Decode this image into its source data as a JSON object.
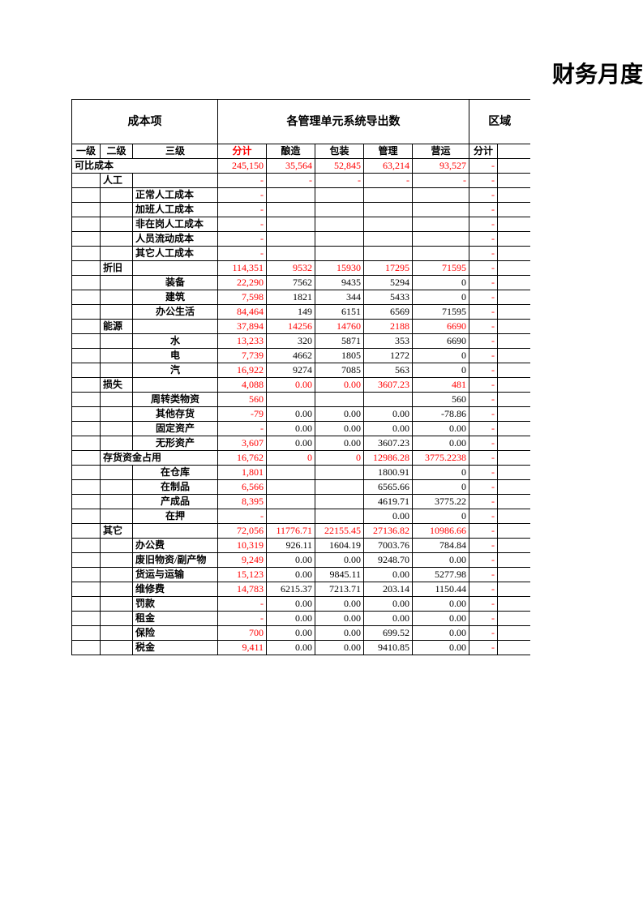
{
  "title": "财务月度",
  "header": {
    "cost_item": "成本项",
    "export": "各管理单元系统导出数",
    "region": "区域",
    "l1": "一级",
    "l2": "二级",
    "l3": "三级",
    "subtotal": "分计",
    "brewing": "酿造",
    "packaging": "包装",
    "mgmt": "管理",
    "operation": "营运",
    "subtotal2": "分计"
  },
  "rows": [
    {
      "l1": "可比成本",
      "l1span": 3,
      "l2": "",
      "l3": "",
      "ft": "245,150",
      "c1": "35,564",
      "c2": "52,845",
      "c3": "63,214",
      "c4": "93,527",
      "ft2": "-",
      "ftRed": true,
      "c1Red": true,
      "c2Red": true,
      "c3Red": true,
      "c4Red": true,
      "ft2Red": true,
      "boldL1": true
    },
    {
      "l1": "",
      "l2": "人工",
      "l3": "",
      "ft": "-",
      "c1": "-",
      "c2": "-",
      "c3": "-",
      "c4": "-",
      "ft2": "-",
      "ftRed": true,
      "c1Red": true,
      "c2Red": true,
      "c3Red": true,
      "c4Red": true,
      "ft2Red": true,
      "boldL2": true
    },
    {
      "l1": "",
      "l2": "",
      "l3": "正常人工成本",
      "ft": "-",
      "c1": "",
      "c2": "",
      "c3": "",
      "c4": "",
      "ft2": "-",
      "ftRed": true,
      "ft2Red": true,
      "boldL3": true
    },
    {
      "l1": "",
      "l2": "",
      "l3": "加班人工成本",
      "ft": "-",
      "c1": "",
      "c2": "",
      "c3": "",
      "c4": "",
      "ft2": "-",
      "ftRed": true,
      "ft2Red": true,
      "boldL3": true
    },
    {
      "l1": "",
      "l2": "",
      "l3": "非在岗人工成本",
      "ft": "-",
      "c1": "",
      "c2": "",
      "c3": "",
      "c4": "",
      "ft2": "-",
      "ftRed": true,
      "ft2Red": true,
      "boldL3": true
    },
    {
      "l1": "",
      "l2": "",
      "l3": "人员流动成本",
      "ft": "-",
      "c1": "",
      "c2": "",
      "c3": "",
      "c4": "",
      "ft2": "-",
      "ftRed": true,
      "ft2Red": true,
      "boldL3": true
    },
    {
      "l1": "",
      "l2": "",
      "l3": "其它人工成本",
      "ft": "-",
      "c1": "",
      "c2": "",
      "c3": "",
      "c4": "",
      "ft2": "-",
      "ftRed": true,
      "ft2Red": true,
      "boldL3": true
    },
    {
      "l1": "",
      "l2": "折旧",
      "l3": "",
      "ft": "114,351",
      "c1": "9532",
      "c2": "15930",
      "c3": "17295",
      "c4": "71595",
      "ft2": "-",
      "ftRed": true,
      "c1Red": true,
      "c2Red": true,
      "c3Red": true,
      "c4Red": true,
      "ft2Red": true,
      "boldL2": true
    },
    {
      "l1": "",
      "l2": "",
      "l3": "装备",
      "ft": "22,290",
      "c1": "7562",
      "c2": "9435",
      "c3": "5294",
      "c4": "0",
      "ft2": "-",
      "ftRed": true,
      "ft2Red": true,
      "l3c": true,
      "boldL3": true
    },
    {
      "l1": "",
      "l2": "",
      "l3": "建筑",
      "ft": "7,598",
      "c1": "1821",
      "c2": "344",
      "c3": "5433",
      "c4": "0",
      "ft2": "-",
      "ftRed": true,
      "ft2Red": true,
      "l3c": true,
      "boldL3": true
    },
    {
      "l1": "",
      "l2": "",
      "l3": "办公生活",
      "ft": "84,464",
      "c1": "149",
      "c2": "6151",
      "c3": "6569",
      "c4": "71595",
      "ft2": "-",
      "ftRed": true,
      "ft2Red": true,
      "l3c": true,
      "boldL3": true
    },
    {
      "l1": "",
      "l2": "能源",
      "l3": "",
      "ft": "37,894",
      "c1": "14256",
      "c2": "14760",
      "c3": "2188",
      "c4": "6690",
      "ft2": "-",
      "ftRed": true,
      "c1Red": true,
      "c2Red": true,
      "c3Red": true,
      "c4Red": true,
      "ft2Red": true,
      "boldL2": true
    },
    {
      "l1": "",
      "l2": "",
      "l3": "水",
      "ft": "13,233",
      "c1": "320",
      "c2": "5871",
      "c3": "353",
      "c4": "6690",
      "ft2": "-",
      "ftRed": true,
      "ft2Red": true,
      "l3c": true,
      "boldL3": true
    },
    {
      "l1": "",
      "l2": "",
      "l3": "电",
      "ft": "7,739",
      "c1": "4662",
      "c2": "1805",
      "c3": "1272",
      "c4": "0",
      "ft2": "-",
      "ftRed": true,
      "ft2Red": true,
      "l3c": true,
      "boldL3": true
    },
    {
      "l1": "",
      "l2": "",
      "l3": "汽",
      "ft": "16,922",
      "c1": "9274",
      "c2": "7085",
      "c3": "563",
      "c4": "0",
      "ft2": "-",
      "ftRed": true,
      "ft2Red": true,
      "l3c": true,
      "boldL3": true
    },
    {
      "l1": "",
      "l2": "损失",
      "l3": "",
      "ft": "4,088",
      "c1": "0.00",
      "c2": "0.00",
      "c3": "3607.23",
      "c4": "481",
      "ft2": "-",
      "ftRed": true,
      "c1Red": true,
      "c2Red": true,
      "c3Red": true,
      "c4Red": true,
      "ft2Red": true,
      "boldL2": true
    },
    {
      "l1": "",
      "l2": "",
      "l3": "周转类物资",
      "ft": "560",
      "c1": "",
      "c2": "",
      "c3": "",
      "c4": "560",
      "ft2": "-",
      "ftRed": true,
      "ft2Red": true,
      "l3c": true,
      "boldL3": true
    },
    {
      "l1": "",
      "l2": "",
      "l3": "其他存货",
      "ft": "-79",
      "c1": "0.00",
      "c2": "0.00",
      "c3": "0.00",
      "c4": "-78.86",
      "ft2": "-",
      "ftRed": true,
      "ft2Red": true,
      "l3c": true,
      "boldL3": true
    },
    {
      "l1": "",
      "l2": "",
      "l3": "固定资产",
      "ft": "-",
      "c1": "0.00",
      "c2": "0.00",
      "c3": "0.00",
      "c4": "0.00",
      "ft2": "-",
      "ftRed": true,
      "ft2Red": true,
      "l3c": true,
      "boldL3": true
    },
    {
      "l1": "",
      "l2": "",
      "l3": "无形资产",
      "ft": "3,607",
      "c1": "0.00",
      "c2": "0.00",
      "c3": "3607.23",
      "c4": "0.00",
      "ft2": "-",
      "ftRed": true,
      "ft2Red": true,
      "l3c": true,
      "boldL3": true
    },
    {
      "l1": "",
      "l2": "存货资金占用",
      "l2span": 2,
      "l3": "",
      "ft": "16,762",
      "c1": "0",
      "c2": "0",
      "c3": "12986.28",
      "c4": "3775.2238",
      "ft2": "-",
      "ftRed": true,
      "c1Red": true,
      "c2Red": true,
      "c3Red": true,
      "c4Red": true,
      "ft2Red": true,
      "boldL2": true
    },
    {
      "l1": "",
      "l2": "",
      "l3": "在仓库",
      "ft": "1,801",
      "c1": "",
      "c2": "",
      "c3": "1800.91",
      "c4": "0",
      "ft2": "-",
      "ftRed": true,
      "ft2Red": true,
      "l3c": true,
      "boldL3": true
    },
    {
      "l1": "",
      "l2": "",
      "l3": "在制品",
      "ft": "6,566",
      "c1": "",
      "c2": "",
      "c3": "6565.66",
      "c4": "0",
      "ft2": "-",
      "ftRed": true,
      "ft2Red": true,
      "l3c": true,
      "boldL3": true
    },
    {
      "l1": "",
      "l2": "",
      "l3": "产成品",
      "ft": "8,395",
      "c1": "",
      "c2": "",
      "c3": "4619.71",
      "c4": "3775.22",
      "ft2": "-",
      "ftRed": true,
      "ft2Red": true,
      "l3c": true,
      "boldL3": true
    },
    {
      "l1": "",
      "l2": "",
      "l3": "在押",
      "ft": "-",
      "c1": "",
      "c2": "",
      "c3": "0.00",
      "c4": "0",
      "ft2": "-",
      "ftRed": true,
      "ft2Red": true,
      "l3c": true,
      "boldL3": true
    },
    {
      "l1": "",
      "l2": "其它",
      "l3": "",
      "ft": "72,056",
      "c1": "11776.71",
      "c2": "22155.45",
      "c3": "27136.82",
      "c4": "10986.66",
      "ft2": "-",
      "ftRed": true,
      "c1Red": true,
      "c2Red": true,
      "c3Red": true,
      "c4Red": true,
      "ft2Red": true,
      "boldL2": true
    },
    {
      "l1": "",
      "l2": "",
      "l3": "办公费",
      "ft": "10,319",
      "c1": "926.11",
      "c2": "1604.19",
      "c3": "7003.76",
      "c4": "784.84",
      "ft2": "-",
      "ftRed": true,
      "ft2Red": true,
      "boldL3": true
    },
    {
      "l1": "",
      "l2": "",
      "l3": "废旧物资/副产物",
      "ft": "9,249",
      "c1": "0.00",
      "c2": "0.00",
      "c3": "9248.70",
      "c4": "0.00",
      "ft2": "-",
      "ftRed": true,
      "ft2Red": true,
      "boldL3": true
    },
    {
      "l1": "",
      "l2": "",
      "l3": "货运与运输",
      "ft": "15,123",
      "c1": "0.00",
      "c2": "9845.11",
      "c3": "0.00",
      "c4": "5277.98",
      "ft2": "-",
      "ftRed": true,
      "ft2Red": true,
      "boldL3": true
    },
    {
      "l1": "",
      "l2": "",
      "l3": "维修费",
      "ft": "14,783",
      "c1": "6215.37",
      "c2": "7213.71",
      "c3": "203.14",
      "c4": "1150.44",
      "ft2": "-",
      "ftRed": true,
      "ft2Red": true,
      "boldL3": true
    },
    {
      "l1": "",
      "l2": "",
      "l3": "罚款",
      "ft": "-",
      "c1": "0.00",
      "c2": "0.00",
      "c3": "0.00",
      "c4": "0.00",
      "ft2": "-",
      "ftRed": true,
      "ft2Red": true,
      "boldL3": true
    },
    {
      "l1": "",
      "l2": "",
      "l3": "租金",
      "ft": "-",
      "c1": "0.00",
      "c2": "0.00",
      "c3": "0.00",
      "c4": "0.00",
      "ft2": "-",
      "ftRed": true,
      "ft2Red": true,
      "boldL3": true
    },
    {
      "l1": "",
      "l2": "",
      "l3": "保险",
      "ft": "700",
      "c1": "0.00",
      "c2": "0.00",
      "c3": "699.52",
      "c4": "0.00",
      "ft2": "-",
      "ftRed": true,
      "ft2Red": true,
      "boldL3": true
    },
    {
      "l1": "",
      "l2": "",
      "l3": "税金",
      "ft": "9,411",
      "c1": "0.00",
      "c2": "0.00",
      "c3": "9410.85",
      "c4": "0.00",
      "ft2": "-",
      "ftRed": true,
      "ft2Red": true,
      "boldL3": true
    }
  ]
}
